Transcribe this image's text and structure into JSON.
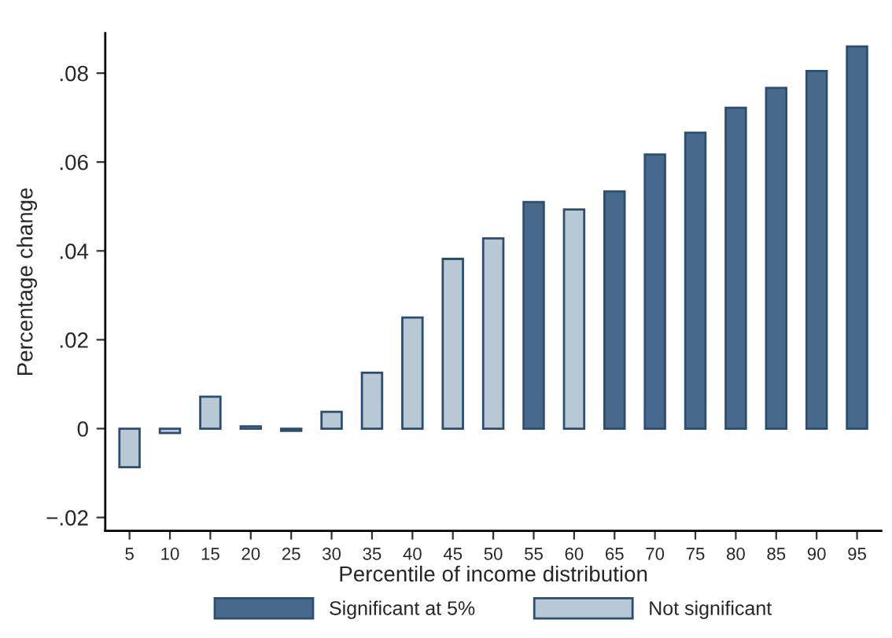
{
  "chart_data": {
    "type": "bar",
    "xlabel": "Percentile of income distribution",
    "ylabel": "Percentage change",
    "categories": [
      "5",
      "10",
      "15",
      "20",
      "25",
      "30",
      "35",
      "40",
      "45",
      "50",
      "55",
      "60",
      "65",
      "70",
      "75",
      "80",
      "85",
      "90",
      "95"
    ],
    "stacked": true,
    "series": [
      {
        "name": "Significant at 5%",
        "color": "#476a8c",
        "values": [
          null,
          null,
          null,
          null,
          null,
          null,
          null,
          null,
          null,
          null,
          0.051,
          null,
          0.0534,
          0.0617,
          0.0666,
          0.0722,
          0.0767,
          0.0805,
          0.086
        ]
      },
      {
        "name": "Not significant",
        "color": "#b9c8d5",
        "values": [
          -0.0087,
          -0.001,
          0.0072,
          0.0005,
          -0.0005,
          0.0038,
          0.0126,
          0.025,
          0.0382,
          0.0428,
          null,
          0.0493,
          null,
          null,
          null,
          null,
          null,
          null,
          null
        ]
      }
    ],
    "ylim": [
      -0.023,
      0.089
    ],
    "yticks": [
      {
        "value": -0.02,
        "label": "−.02"
      },
      0,
      {
        "value": 0.02,
        "label": ".02"
      },
      {
        "value": 0.04,
        "label": ".04"
      },
      {
        "value": 0.06,
        "label": ".06"
      },
      {
        "value": 0.08,
        "label": ".08"
      }
    ],
    "grid": false,
    "legend": "bottom"
  }
}
